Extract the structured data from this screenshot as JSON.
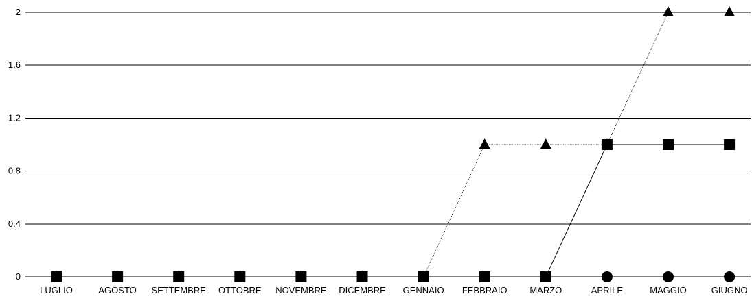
{
  "chart_data": {
    "type": "line",
    "title": "",
    "xlabel": "",
    "ylabel": "",
    "categories": [
      "LUGLIO",
      "AGOSTO",
      "SETTEMBRE",
      "OTTOBRE",
      "NOVEMBRE",
      "DICEMBRE",
      "GENNAIO",
      "FEBBRAIO",
      "MARZO",
      "APRILE",
      "MAGGIO",
      "GIUGNO"
    ],
    "y_ticks": [
      "0",
      "0.4",
      "0.8",
      "1.2",
      "1.6",
      "2"
    ],
    "ylim": [
      0,
      2
    ],
    "grid": true,
    "legend": "none",
    "series": [
      {
        "marker": "triangle",
        "line_style": "dotted",
        "values": [
          0,
          0,
          0,
          0,
          0,
          0,
          0,
          1,
          1,
          1,
          2,
          2
        ]
      },
      {
        "marker": "square",
        "line_style": "solid",
        "values": [
          0,
          0,
          0,
          0,
          0,
          0,
          0,
          0,
          0,
          1,
          1,
          1
        ]
      },
      {
        "marker": "circle",
        "line_style": "none",
        "values": [
          null,
          null,
          null,
          null,
          null,
          null,
          null,
          null,
          null,
          0,
          0,
          0
        ]
      }
    ],
    "colors": {
      "line": "#000000",
      "marker": "#000000",
      "grid": "#000000"
    }
  }
}
